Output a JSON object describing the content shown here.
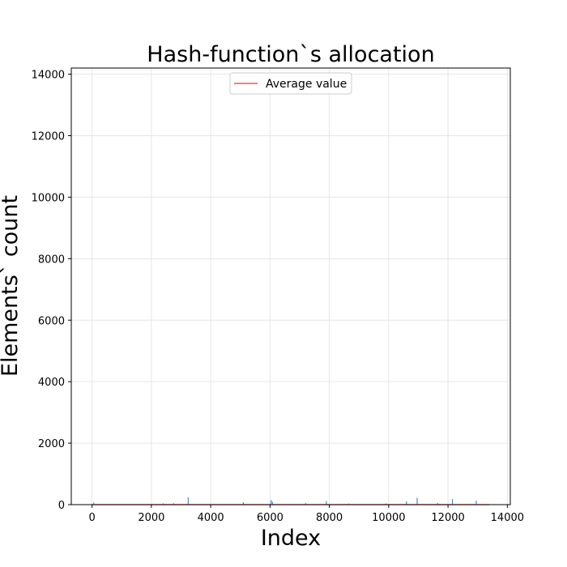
{
  "chart_data": {
    "type": "bar",
    "title": "Hash-function`s allocation",
    "xlabel": "Index",
    "ylabel": "Elements` count",
    "xlim": [
      -700,
      14100
    ],
    "ylim": [
      0,
      14200
    ],
    "x_ticks": [
      0,
      2000,
      4000,
      6000,
      8000,
      10000,
      12000,
      14000
    ],
    "y_ticks": [
      0,
      2000,
      4000,
      6000,
      8000,
      10000,
      12000,
      14000
    ],
    "x_tick_labels": [
      "0",
      "2000",
      "4000",
      "6000",
      "8000",
      "10000",
      "12000",
      "14000"
    ],
    "y_tick_labels": [
      "0",
      "2000",
      "4000",
      "6000",
      "8000",
      "10000",
      "12000",
      "14000"
    ],
    "grid": true,
    "legend": {
      "placement": "upper center",
      "entries": [
        {
          "label": "Average value",
          "color": "#f47f7f"
        }
      ]
    },
    "average_line": {
      "y": 0,
      "x_start": 0,
      "x_end": 13400
    },
    "bar_color": "#1f77b4",
    "average_color": "#f47f7f",
    "x": [
      60,
      2400,
      2750,
      3240,
      5100,
      6040,
      6080,
      7200,
      7900,
      8650,
      9900,
      10600,
      10960,
      11650,
      12150,
      12950
    ],
    "values": [
      70,
      40,
      45,
      240,
      80,
      150,
      90,
      50,
      120,
      35,
      40,
      110,
      220,
      55,
      180,
      130
    ]
  }
}
